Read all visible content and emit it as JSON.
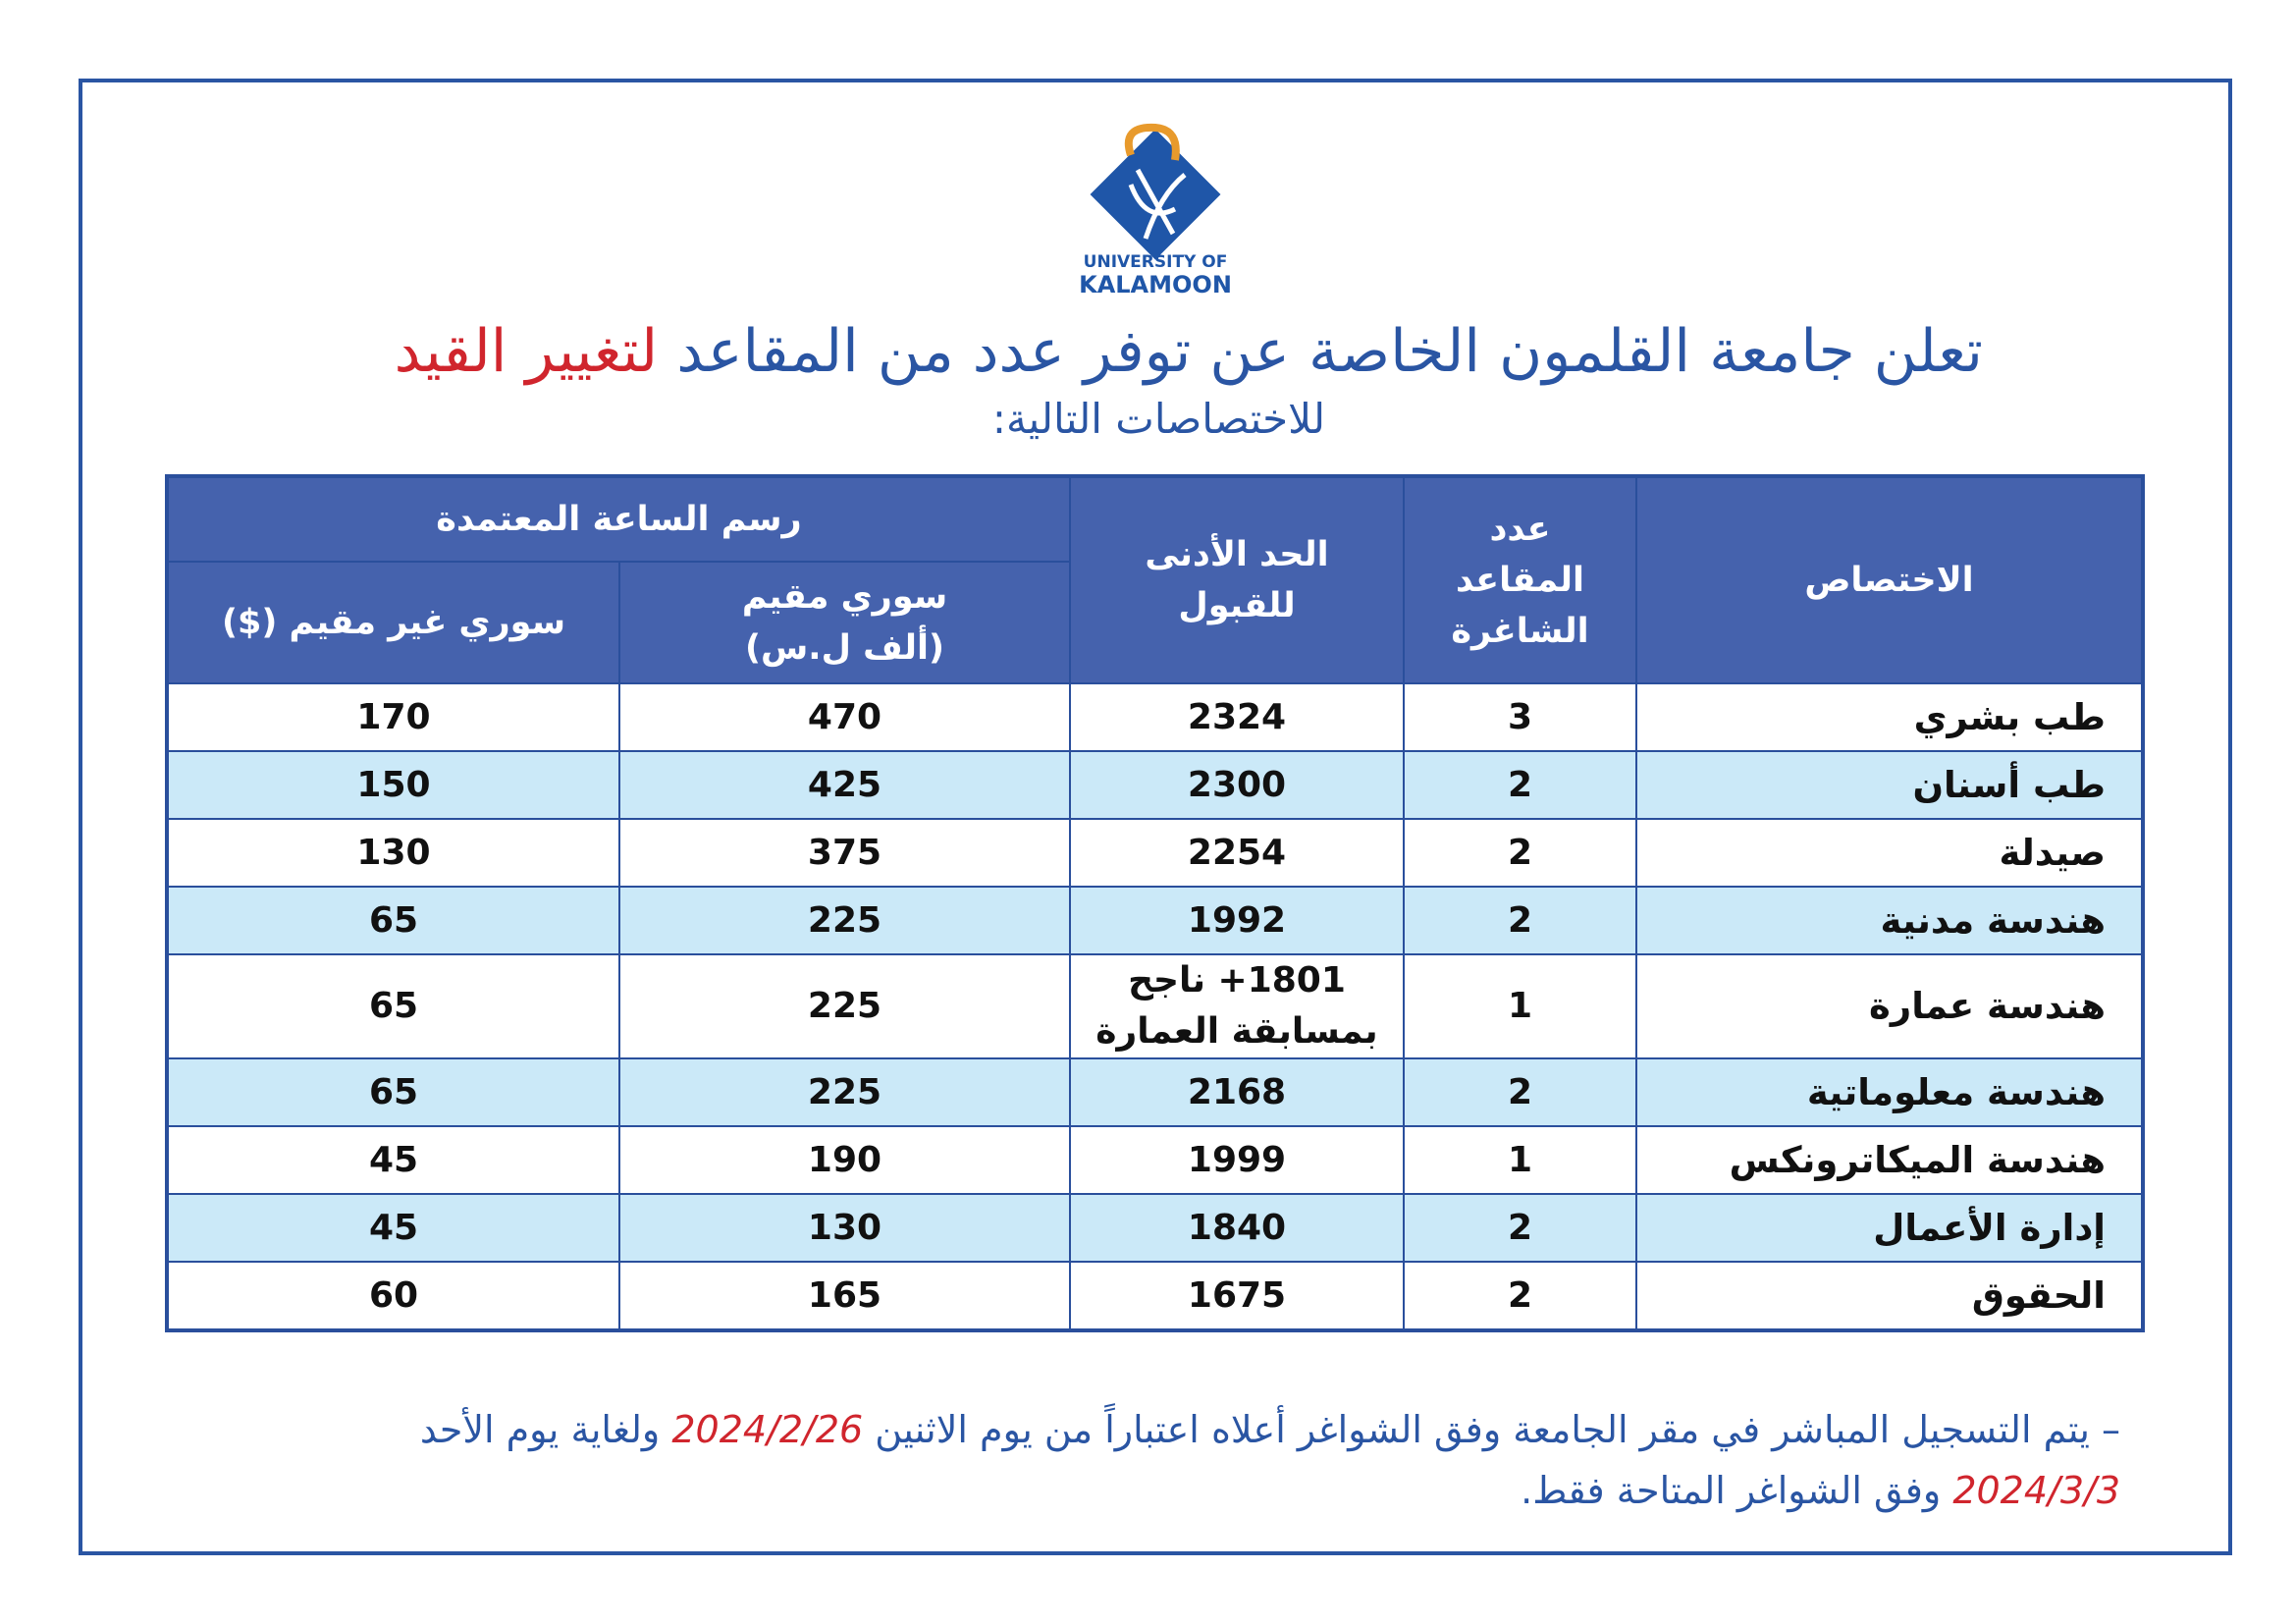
{
  "logo": {
    "line1": "UNIVERSITY OF",
    "line2": "KALAMOON"
  },
  "title": {
    "main": "تعلن جامعة القلمون الخاصة عن توفر عدد من المقاعد",
    "highlight": "لتغيير القيد"
  },
  "subtitle": "للاختصاصات التالية:",
  "table": {
    "headers": {
      "specialty": "الاختصاص",
      "seats": "عدد\nالمقاعد\nالشاغرة",
      "min": "الحد الأدنى\nللقبول",
      "fee": "رسم الساعة المعتمدة",
      "resident": "سوري مقيم\n(ألف ل.س)",
      "nonresident": "سوري غير مقيم ($)"
    },
    "rows": [
      [
        "طب بشري",
        3,
        2324,
        470,
        170
      ],
      [
        "طب أسنان",
        2,
        2300,
        425,
        150
      ],
      [
        "صيدلة",
        2,
        2254,
        375,
        130
      ],
      [
        "هندسة مدنية",
        2,
        1992,
        225,
        65
      ],
      [
        "هندسة عمارة",
        1,
        "1801+ ناجح\nبمسابقة العمارة",
        225,
        65
      ],
      [
        "هندسة معلوماتية",
        2,
        2168,
        225,
        65
      ],
      [
        "هندسة الميكاترونكس",
        1,
        1999,
        190,
        45
      ],
      [
        "إدارة الأعمال",
        2,
        1840,
        130,
        45
      ],
      [
        "الحقوق",
        2,
        1675,
        165,
        60
      ]
    ]
  },
  "note": {
    "part1": "– يتم التسجيل المباشر في مقر الجامعة وفق الشواغر أعلاه اعتباراً من يوم الاثنين",
    "date1": "2024/2/26",
    "part2": "ولغاية يوم الأحد",
    "date2": "2024/3/3",
    "part3": "وفق الشواغر المتاحة فقط."
  }
}
